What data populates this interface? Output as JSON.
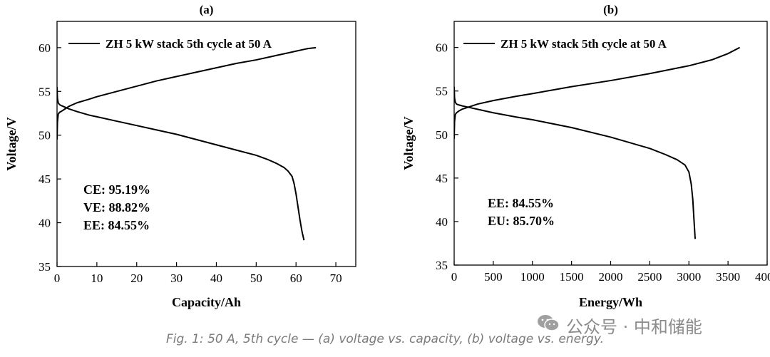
{
  "chart_data": [
    {
      "type": "line",
      "panel_label": "(a)",
      "xlabel": "Capacity/Ah",
      "ylabel": "Voltage/V",
      "xlim": [
        0,
        75
      ],
      "ylim": [
        35,
        63
      ],
      "xticks": [
        0,
        10,
        20,
        30,
        40,
        50,
        60,
        70
      ],
      "yticks": [
        35,
        40,
        45,
        50,
        55,
        60
      ],
      "legend": {
        "text": "ZH 5 kW stack 5th cycle at 50 A",
        "placement": "top-left"
      },
      "annotations": [
        "CE: 95.19%",
        "VE: 88.82%",
        "EE: 84.55%"
      ],
      "series": [
        {
          "segment": "charge",
          "x": [
            0,
            0.1,
            0.3,
            0.6,
            1,
            2,
            3,
            5,
            8,
            10,
            15,
            20,
            25,
            30,
            35,
            40,
            45,
            50,
            55,
            58,
            60,
            62,
            63,
            65
          ],
          "y": [
            49.5,
            51.5,
            52.4,
            52.6,
            52.7,
            53.0,
            53.3,
            53.7,
            54.1,
            54.4,
            55.0,
            55.6,
            56.2,
            56.7,
            57.2,
            57.7,
            58.2,
            58.6,
            59.1,
            59.4,
            59.6,
            59.8,
            59.9,
            60.0
          ]
        },
        {
          "segment": "discharge",
          "x": [
            0,
            0.1,
            0.3,
            0.6,
            1,
            2,
            3,
            5,
            8,
            10,
            15,
            20,
            25,
            30,
            35,
            40,
            45,
            50,
            53,
            55,
            57,
            58,
            59,
            59.5,
            60,
            60.5,
            61,
            61.5,
            62
          ],
          "y": [
            55.5,
            54.2,
            53.7,
            53.5,
            53.4,
            53.2,
            53.0,
            52.7,
            52.3,
            52.1,
            51.6,
            51.1,
            50.6,
            50.1,
            49.5,
            48.9,
            48.3,
            47.7,
            47.2,
            46.8,
            46.3,
            45.9,
            45.3,
            44.5,
            43.3,
            41.8,
            40.3,
            39.0,
            38.0
          ]
        }
      ]
    },
    {
      "type": "line",
      "panel_label": "(b)",
      "xlabel": "Energy/Wh",
      "ylabel": "Voltage/V",
      "xlim": [
        0,
        4000
      ],
      "ylim": [
        35,
        63
      ],
      "xticks": [
        0,
        500,
        1000,
        1500,
        2000,
        2500,
        3000,
        3500,
        4000
      ],
      "yticks": [
        35,
        40,
        45,
        50,
        55,
        60
      ],
      "legend": {
        "text": "ZH 5 kW stack 5th cycle at 50 A",
        "placement": "top-left"
      },
      "annotations": [
        "EE: 84.55%",
        "EU: 85.70%"
      ],
      "series": [
        {
          "segment": "charge",
          "x": [
            0,
            5,
            15,
            30,
            60,
            100,
            200,
            300,
            500,
            800,
            1000,
            1500,
            2000,
            2500,
            3000,
            3300,
            3500,
            3650
          ],
          "y": [
            49.5,
            51.5,
            52.3,
            52.5,
            52.7,
            52.9,
            53.2,
            53.5,
            53.9,
            54.4,
            54.7,
            55.5,
            56.2,
            57.0,
            57.9,
            58.6,
            59.3,
            60.0
          ]
        },
        {
          "segment": "discharge",
          "x": [
            0,
            5,
            15,
            30,
            60,
            100,
            200,
            300,
            500,
            800,
            1000,
            1500,
            2000,
            2500,
            2700,
            2850,
            2950,
            3000,
            3030,
            3050,
            3065,
            3080
          ],
          "y": [
            55.5,
            54.2,
            53.7,
            53.5,
            53.4,
            53.3,
            53.1,
            52.9,
            52.5,
            52.0,
            51.7,
            50.8,
            49.7,
            48.4,
            47.7,
            47.1,
            46.5,
            45.7,
            44.3,
            42.5,
            40.2,
            38.0
          ]
        }
      ]
    }
  ],
  "caption": "Fig. 1: 50 A, 5th cycle — (a) voltage vs. capacity, (b) voltage vs. energy.",
  "watermark": {
    "icon": "wechat-icon",
    "text": "公众号 · 中和储能"
  }
}
